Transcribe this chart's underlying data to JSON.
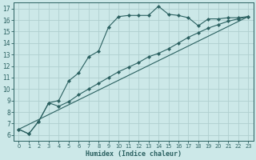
{
  "xlabel": "Humidex (Indice chaleur)",
  "bg_color": "#cce8e8",
  "grid_color": "#b0d0d0",
  "line_color": "#2a6060",
  "xlim": [
    -0.5,
    23.5
  ],
  "ylim": [
    5.5,
    17.5
  ],
  "xticks": [
    0,
    1,
    2,
    3,
    4,
    5,
    6,
    7,
    8,
    9,
    10,
    11,
    12,
    13,
    14,
    15,
    16,
    17,
    18,
    19,
    20,
    21,
    22,
    23
  ],
  "yticks": [
    6,
    7,
    8,
    9,
    10,
    11,
    12,
    13,
    14,
    15,
    16,
    17
  ],
  "line1_x": [
    0,
    1,
    2,
    3,
    4,
    5,
    6,
    7,
    8,
    9,
    10,
    11,
    12,
    13,
    14,
    15,
    16,
    17,
    18,
    19,
    20,
    21,
    22,
    23
  ],
  "line1_y": [
    6.5,
    6.1,
    7.2,
    8.8,
    9.0,
    10.7,
    11.4,
    12.8,
    13.3,
    15.4,
    16.3,
    16.4,
    16.4,
    16.4,
    17.2,
    16.5,
    16.4,
    16.2,
    15.5,
    16.1,
    16.1,
    16.2,
    16.2,
    16.3
  ],
  "line2_x": [
    0,
    1,
    2,
    3,
    4,
    5,
    6,
    7,
    8,
    9,
    10,
    11,
    12,
    13,
    14,
    15,
    16,
    17,
    18,
    19,
    20,
    21,
    22,
    23
  ],
  "line2_y": [
    6.5,
    6.1,
    7.2,
    8.8,
    8.5,
    8.9,
    9.5,
    10.0,
    10.5,
    11.0,
    11.5,
    11.9,
    12.3,
    12.8,
    13.1,
    13.5,
    14.0,
    14.5,
    14.9,
    15.3,
    15.6,
    15.9,
    16.1,
    16.3
  ],
  "line3_x": [
    0,
    23
  ],
  "line3_y": [
    6.5,
    16.3
  ]
}
